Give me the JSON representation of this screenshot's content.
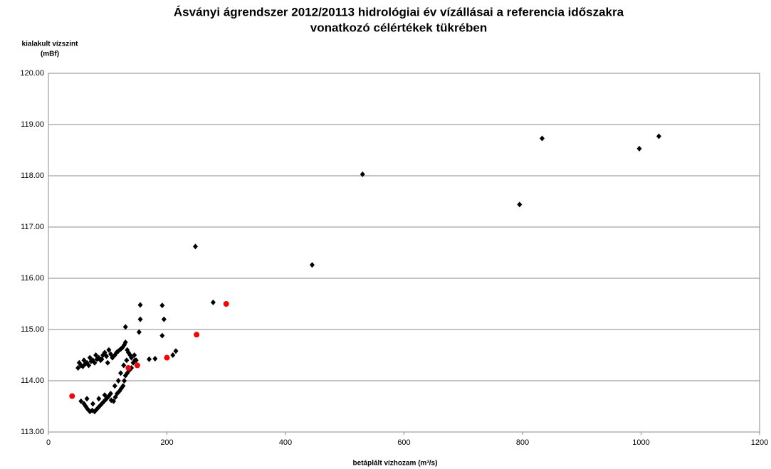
{
  "chart_data": {
    "type": "scatter",
    "title": [
      "Ásványi ágrendszer 2012/20113 hidrológiai év vízállásai a referencia időszakra",
      "vonatkozó célértékek tükrében"
    ],
    "y_label": [
      "kialakult vízszint",
      "(mBf)"
    ],
    "x_label": "betáplált vízhozam (m³/s)",
    "xlim": [
      0,
      1200
    ],
    "xticks": [
      0,
      200,
      400,
      600,
      800,
      1000,
      1200
    ],
    "ylim": [
      113,
      120
    ],
    "yticks": [
      {
        "value": 113,
        "label": "113.00"
      },
      {
        "value": 114,
        "label": "114.00"
      },
      {
        "value": 115,
        "label": "115.00"
      },
      {
        "value": 116,
        "label": "116.00"
      },
      {
        "value": 117,
        "label": "117.00"
      },
      {
        "value": 118,
        "label": "118.00"
      },
      {
        "value": 119,
        "label": "119.00"
      },
      {
        "value": 120,
        "label": "120.00"
      }
    ],
    "grid": true,
    "series": [
      {
        "color": "#000000",
        "marker": "diamond",
        "x": [
          248,
          278,
          445,
          530,
          795,
          833,
          997,
          1030,
          192,
          195,
          192,
          155,
          155,
          153,
          130,
          210,
          215,
          200,
          180,
          170,
          50,
          55,
          58,
          62,
          65,
          68,
          72,
          75,
          78,
          82,
          85,
          88,
          92,
          95,
          98,
          102,
          105,
          108,
          112,
          115,
          118,
          122,
          125,
          128,
          130,
          133,
          135,
          138,
          140,
          145,
          148,
          52,
          60,
          70,
          80,
          90,
          100,
          55,
          60,
          63,
          66,
          70,
          74,
          78,
          82,
          86,
          90,
          94,
          98,
          102,
          106,
          110,
          113,
          116,
          120,
          123,
          126,
          128,
          130,
          133,
          136,
          140,
          143,
          146,
          65,
          75,
          85,
          95,
          105,
          112,
          118,
          122,
          127,
          132
        ],
        "values": [
          116.62,
          115.53,
          116.26,
          118.03,
          117.44,
          118.73,
          118.53,
          118.77,
          115.47,
          115.2,
          114.88,
          115.48,
          115.2,
          114.95,
          115.05,
          114.5,
          114.58,
          114.45,
          114.43,
          114.42,
          114.25,
          114.3,
          114.28,
          114.33,
          114.35,
          114.3,
          114.38,
          114.4,
          114.35,
          114.42,
          114.45,
          114.4,
          114.5,
          114.55,
          114.48,
          114.6,
          114.52,
          114.45,
          114.5,
          114.55,
          114.58,
          114.62,
          114.65,
          114.7,
          114.75,
          114.6,
          114.55,
          114.5,
          114.45,
          114.5,
          114.4,
          114.35,
          114.4,
          114.45,
          114.5,
          114.42,
          114.35,
          113.6,
          113.55,
          113.5,
          113.45,
          113.4,
          113.42,
          113.4,
          113.45,
          113.5,
          113.55,
          113.6,
          113.65,
          113.7,
          113.62,
          113.6,
          113.68,
          113.75,
          113.8,
          113.85,
          113.9,
          114.0,
          114.1,
          114.15,
          114.2,
          114.25,
          114.35,
          114.4,
          113.65,
          113.55,
          113.65,
          113.72,
          113.75,
          113.9,
          114.0,
          114.15,
          114.3,
          114.4
        ]
      },
      {
        "color": "#ff0000",
        "marker": "circle",
        "x": [
          40,
          135,
          150,
          200,
          250,
          300
        ],
        "values": [
          113.7,
          114.25,
          114.3,
          114.45,
          114.9,
          115.5
        ]
      }
    ]
  }
}
